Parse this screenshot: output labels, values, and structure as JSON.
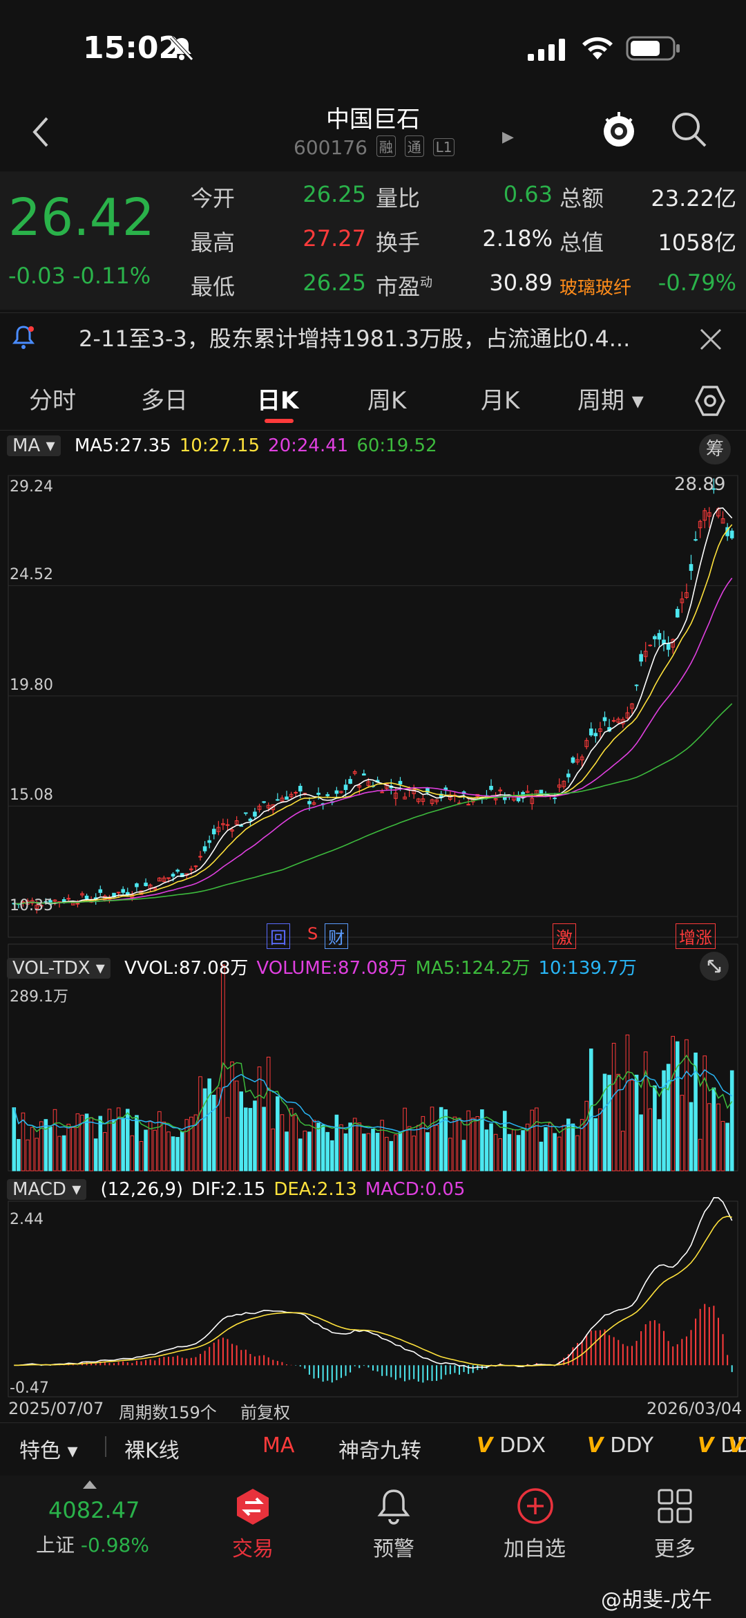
{
  "status": {
    "time": "15:02"
  },
  "header": {
    "title": "中国巨石",
    "code": "600176",
    "badges": [
      "融",
      "通",
      "L1"
    ]
  },
  "quote": {
    "price": "26.42",
    "change": "-0.03",
    "change_pct": "-0.11%",
    "rows": [
      [
        {
          "label": "今开",
          "value": "26.25",
          "color": "green"
        },
        {
          "label": "量比",
          "value": "0.63",
          "color": "green"
        },
        {
          "label": "总额",
          "value": "23.22亿",
          "color": "white"
        }
      ],
      [
        {
          "label": "最高",
          "value": "27.27",
          "color": "red"
        },
        {
          "label": "换手",
          "value": "2.18%",
          "color": "white"
        },
        {
          "label": "总值",
          "value": "1058亿",
          "color": "white"
        }
      ],
      [
        {
          "label": "最低",
          "value": "26.25",
          "color": "green"
        },
        {
          "label": "市盈",
          "value": "30.89",
          "color": "white"
        },
        {
          "label": "玻璃玻纤",
          "value": "-0.79%",
          "color": "green"
        }
      ]
    ],
    "pe_sup": "动"
  },
  "notice": {
    "text": "2-11至3-3，股东累计增持1981.3万股，占流通比0.4..."
  },
  "tabs": [
    "分时",
    "多日",
    "日K",
    "周K",
    "月K",
    "周期"
  ],
  "active_tab": "日K",
  "kline": {
    "indicator": "MA",
    "legend": [
      {
        "text": "MA5:27.35",
        "color": "#ffffff"
      },
      {
        "text": "10:27.15",
        "color": "#ffe23c"
      },
      {
        "text": "20:24.41",
        "color": "#e040e0"
      },
      {
        "text": "60:19.52",
        "color": "#3dbb3d"
      }
    ],
    "chip_label": "筹",
    "y_labels": [
      "29.24",
      "24.52",
      "19.80",
      "15.08",
      "10.35"
    ],
    "y_values": [
      29.24,
      24.52,
      19.8,
      15.08,
      10.35
    ],
    "high_label": "28.89",
    "events": [
      {
        "text": "回",
        "color": "#5b6cff"
      },
      {
        "text": "S",
        "color": "#ff3b3b"
      },
      {
        "text": "财",
        "color": "#5b9cff"
      },
      {
        "text": "激",
        "color": "#ff3b3b"
      },
      {
        "text": "增涨",
        "color": "#ff3b3b"
      }
    ]
  },
  "volume": {
    "indicator": "VOL-TDX",
    "legend": [
      {
        "text": "VVOL:87.08万",
        "color": "#ffffff"
      },
      {
        "text": "VOLUME:87.08万",
        "color": "#e040e0"
      },
      {
        "text": "MA5:124.2万",
        "color": "#3dbb3d"
      },
      {
        "text": "10:139.7万",
        "color": "#29b6f6"
      }
    ],
    "max_label": "289.1万"
  },
  "macd": {
    "indicator": "MACD",
    "legend": [
      {
        "text": "(12,26,9)",
        "color": "#ffffff"
      },
      {
        "text": "DIF:2.15",
        "color": "#ffffff"
      },
      {
        "text": "DEA:2.13",
        "color": "#ffe23c"
      },
      {
        "text": "MACD:0.05",
        "color": "#e040e0"
      }
    ],
    "max_label": "2.44",
    "min_label": "-0.47"
  },
  "footer": {
    "start_date": "2025/07/07",
    "period_count": "周期数159个",
    "adjust": "前复权",
    "end_date": "2026/03/04"
  },
  "toolbar": {
    "special": "特色",
    "items": [
      {
        "text": "裸K线",
        "color": "#dddddd"
      },
      {
        "text": "MA",
        "color": "#ff3b3b"
      },
      {
        "text": "神奇九转",
        "color": "#dddddd"
      },
      {
        "text": "DDX",
        "color": "#dddddd",
        "v": true
      },
      {
        "text": "DDY",
        "color": "#dddddd",
        "v": true
      },
      {
        "text": "DDZ",
        "color": "#dddddd",
        "v": true
      }
    ]
  },
  "nav": {
    "index_value": "4082.47",
    "index_name": "上证",
    "index_change": "-0.98%",
    "items": [
      {
        "label": "交易",
        "active": true
      },
      {
        "label": "预警"
      },
      {
        "label": "加自选"
      },
      {
        "label": "更多"
      }
    ]
  },
  "watermark": "@胡斐-戊午"
}
